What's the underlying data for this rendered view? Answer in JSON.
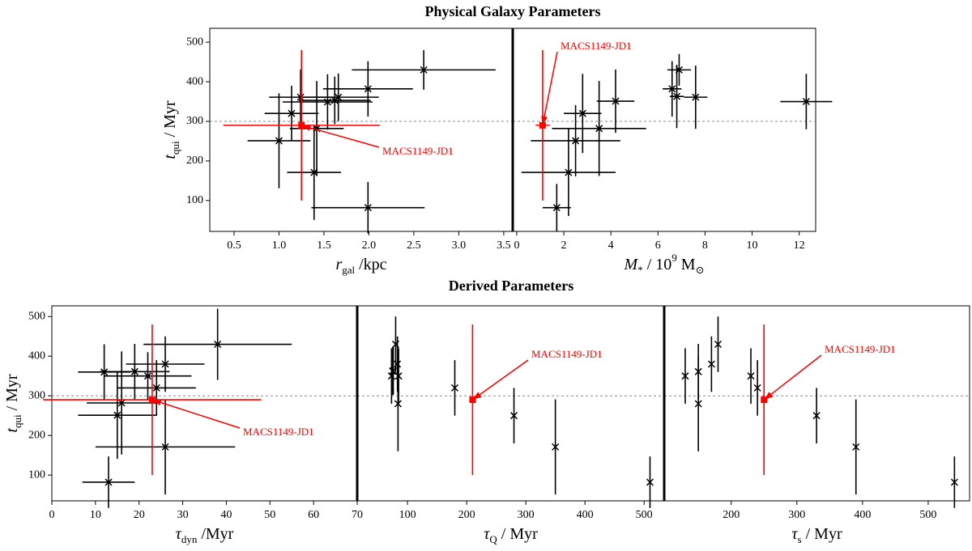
{
  "figure_titles": [
    "Physical Galaxy Parameters",
    "Derived Parameters"
  ],
  "chart_data": [
    {
      "type": "scatter",
      "xlabel": [
        {
          "text": "r",
          "style": "italic"
        },
        {
          "text": "gal",
          "style": "sub"
        },
        {
          "text": " /kpc"
        }
      ],
      "ylabel": [
        {
          "text": "t",
          "style": "italic"
        },
        {
          "text": "qui",
          "style": "sub"
        },
        {
          "text": " / Myr"
        }
      ],
      "xlim": [
        0.23,
        3.6
      ],
      "ylim": [
        22,
        535
      ],
      "xticks": [
        0.5,
        {
          "value": 1.0,
          "label": "1.0"
        },
        1.5,
        {
          "value": 2.0,
          "label": "2.0"
        },
        2.5,
        {
          "value": 3.0,
          "label": "3.0"
        },
        3.5
      ],
      "yticks": [
        100,
        200,
        300,
        400,
        500
      ],
      "hline": 300,
      "annotation": "MACS1149-JD1",
      "series": [
        {
          "color": "#000000",
          "marker": "x",
          "x": [
            2.61,
            1.99,
            1.66,
            1.62,
            1.54,
            1.24,
            1.14,
            1.42,
            1.0,
            1.39,
            1.99
          ],
          "values": [
            430,
            382,
            361,
            353,
            349,
            361,
            320,
            282,
            251,
            171,
            82
          ],
          "xerr": [
            0.8,
            0.5,
            0.45,
            0.4,
            0.5,
            0.35,
            0.3,
            0.3,
            0.35,
            0.3,
            0.63
          ],
          "yerr": [
            50,
            70,
            60,
            60,
            70,
            70,
            70,
            120,
            120,
            120,
            65
          ]
        },
        {
          "color": "#ff0000",
          "marker": "square",
          "x": [
            1.25
          ],
          "values": [
            290
          ],
          "xerr": [
            0.87
          ],
          "yerr": [
            190
          ]
        }
      ]
    },
    {
      "type": "scatter",
      "xlabel": [
        {
          "text": "M",
          "style": "italic"
        },
        {
          "text": "*",
          "style": "sub"
        },
        {
          "text": " / 10"
        },
        {
          "text": "9",
          "style": "sup"
        },
        {
          "text": " M"
        },
        {
          "text": "⊙",
          "style": "sub"
        }
      ],
      "xlim": [
        -0.17,
        12.7
      ],
      "ylim": [
        22,
        535
      ],
      "xticks": [
        0,
        2,
        4,
        6,
        8,
        10,
        12
      ],
      "hline": 300,
      "annotation": "MACS1149-JD1",
      "series": [
        {
          "color": "#000000",
          "marker": "x",
          "x": [
            12.3,
            6.9,
            6.6,
            6.8,
            7.6,
            4.2,
            2.8,
            3.5,
            2.5,
            2.2,
            1.7
          ],
          "values": [
            350,
            430,
            382,
            363,
            361,
            351,
            320,
            282,
            251,
            171,
            82
          ],
          "xerr": [
            1.1,
            0.5,
            0.4,
            0.3,
            0.5,
            0.8,
            0.8,
            2.0,
            1.9,
            2.0,
            0.6
          ],
          "yerr": [
            70,
            40,
            70,
            80,
            80,
            80,
            100,
            120,
            90,
            110,
            60
          ]
        },
        {
          "color": "#ff0000",
          "marker": "square",
          "x": [
            1.1
          ],
          "values": [
            290
          ],
          "xerr": [
            0.3
          ],
          "yerr": [
            190
          ]
        }
      ]
    },
    {
      "type": "scatter",
      "xlabel": [
        {
          "text": "τ",
          "style": "italic"
        },
        {
          "text": "dyn",
          "style": "sub"
        },
        {
          "text": " /Myr"
        }
      ],
      "ylabel": [
        {
          "text": "t",
          "style": "italic"
        },
        {
          "text": "qui",
          "style": "sub"
        },
        {
          "text": " / Myr"
        }
      ],
      "xlim": [
        0,
        70
      ],
      "ylim": [
        35,
        527
      ],
      "xticks": [
        0,
        10,
        20,
        30,
        40,
        50,
        60,
        70
      ],
      "yticks": [
        100,
        200,
        300,
        400,
        500
      ],
      "hline": 300,
      "annotation": "MACS1149-JD1",
      "series": [
        {
          "color": "#000000",
          "marker": "x",
          "x": [
            38,
            26,
            12,
            19,
            22,
            24,
            16,
            15,
            26,
            13
          ],
          "values": [
            430,
            380,
            360,
            361,
            350,
            320,
            282,
            251,
            171,
            82
          ],
          "xerr": [
            17,
            9,
            6,
            8,
            10,
            9,
            8,
            9,
            16,
            6
          ],
          "yerr": [
            90,
            70,
            70,
            70,
            60,
            70,
            130,
            110,
            120,
            65
          ]
        },
        {
          "color": "#ff0000",
          "marker": "square",
          "x": [
            23
          ],
          "values": [
            290
          ],
          "xerr": [
            25
          ],
          "yerr": [
            190
          ]
        }
      ]
    },
    {
      "type": "scatter",
      "xlabel": [
        {
          "text": "τ",
          "style": "italic"
        },
        {
          "text": "Q",
          "style": "sub"
        },
        {
          "text": " / Myr"
        }
      ],
      "xlim": [
        15,
        534
      ],
      "ylim": [
        35,
        527
      ],
      "xticks": [
        100,
        200,
        300,
        400,
        500
      ],
      "hline": 300,
      "annotation": "MACS1149-JD1",
      "series": [
        {
          "color": "#000000",
          "marker": "x",
          "x": [
            73,
            75,
            76,
            80,
            83,
            84,
            85,
            180,
            280,
            350,
            510
          ],
          "values": [
            350,
            362,
            363,
            430,
            380,
            280,
            350,
            320,
            250,
            171,
            82
          ],
          "yerr": [
            70,
            60,
            60,
            70,
            70,
            120,
            70,
            70,
            70,
            120,
            65
          ]
        },
        {
          "color": "#ff0000",
          "marker": "square",
          "x": [
            210
          ],
          "values": [
            290
          ],
          "yerr": [
            190
          ]
        }
      ]
    },
    {
      "type": "scatter",
      "xlabel": [
        {
          "text": "τ",
          "style": "italic"
        },
        {
          "text": "s",
          "style": "sub"
        },
        {
          "text": " / Myr"
        }
      ],
      "xlim": [
        98,
        563
      ],
      "ylim": [
        35,
        527
      ],
      "xticks": [
        200,
        300,
        400,
        500
      ],
      "hline": 300,
      "annotation": "MACS1149-JD1",
      "series": [
        {
          "color": "#000000",
          "marker": "x",
          "x": [
            130,
            150,
            150,
            170,
            180,
            230,
            240,
            330,
            390,
            540
          ],
          "values": [
            350,
            361,
            280,
            380,
            430,
            350,
            320,
            250,
            171,
            82
          ],
          "yerr": [
            70,
            70,
            120,
            70,
            70,
            70,
            70,
            70,
            120,
            65
          ]
        },
        {
          "color": "#ff0000",
          "marker": "square",
          "x": [
            250
          ],
          "values": [
            290
          ],
          "yerr": [
            190
          ]
        }
      ]
    }
  ]
}
